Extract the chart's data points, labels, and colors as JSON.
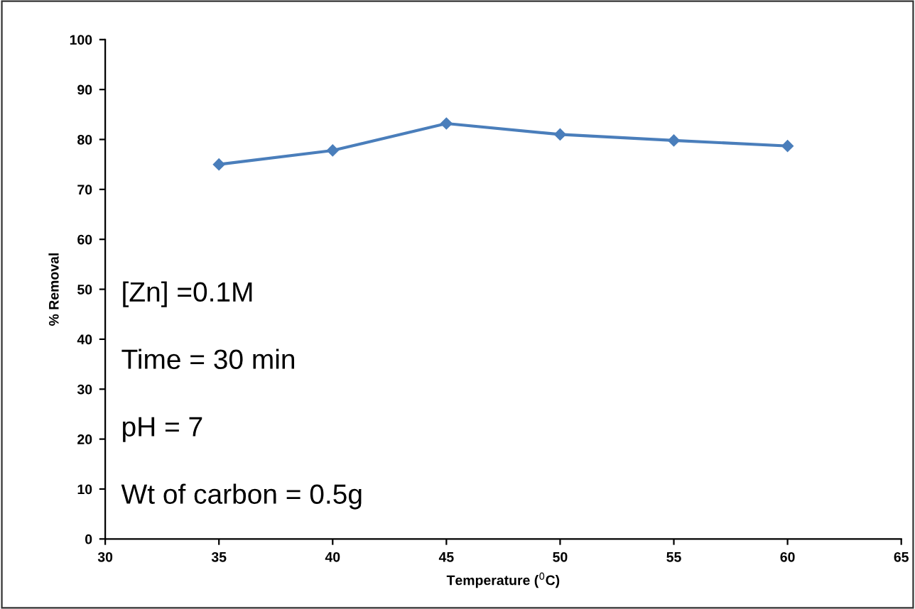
{
  "chart_data": {
    "type": "line",
    "xlabel": "Temperature ($^{0}$C)",
    "ylabel": "% Removal",
    "x": [
      35,
      40,
      45,
      50,
      55,
      60
    ],
    "series": [
      {
        "color": "#4a7ebb",
        "values": [
          75,
          77.8,
          83.2,
          81,
          79.8,
          78.7
        ]
      }
    ],
    "xlim": [
      30,
      65
    ],
    "xticks": [
      30,
      35,
      40,
      45,
      50,
      55,
      60,
      65
    ],
    "ylim": [
      0,
      100
    ],
    "yticks": [
      0,
      10,
      20,
      30,
      40,
      50,
      60,
      70,
      80,
      90,
      100
    ],
    "grid": false,
    "legend": false,
    "marker": "diamond",
    "line_style": "solid",
    "annotations": [
      "[Zn] =0.1M",
      "Time = 30 min",
      "pH = 7",
      "Wt of carbon = 0.5g"
    ]
  }
}
